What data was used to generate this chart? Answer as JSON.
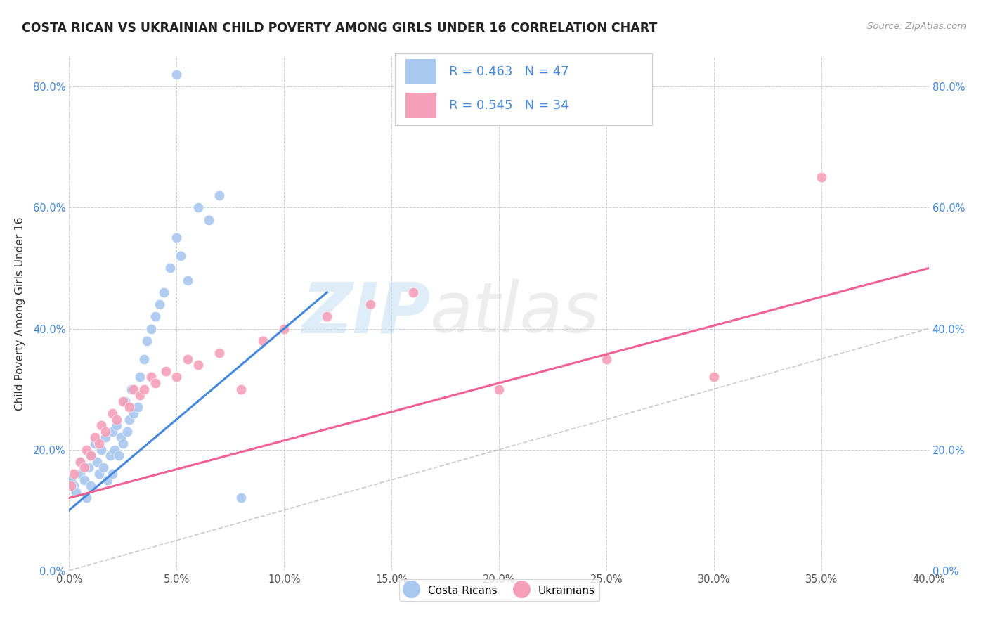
{
  "title": "COSTA RICAN VS UKRAINIAN CHILD POVERTY AMONG GIRLS UNDER 16 CORRELATION CHART",
  "source": "Source: ZipAtlas.com",
  "ylabel": "Child Poverty Among Girls Under 16",
  "xlim": [
    0.0,
    0.4
  ],
  "ylim": [
    0.0,
    0.85
  ],
  "x_ticks": [
    0.0,
    0.05,
    0.1,
    0.15,
    0.2,
    0.25,
    0.3,
    0.35,
    0.4
  ],
  "y_ticks": [
    0.0,
    0.2,
    0.4,
    0.6,
    0.8
  ],
  "background_color": "#ffffff",
  "grid_color": "#c8c8c8",
  "watermark_zip": "ZIP",
  "watermark_atlas": "atlas",
  "cr_color": "#a8c8f0",
  "ua_color": "#f5a0b8",
  "cr_line_color": "#4488dd",
  "ua_line_color": "#f06090",
  "diagonal_color": "#bbbbbb",
  "cr_R": 0.463,
  "cr_N": 47,
  "ua_R": 0.545,
  "ua_N": 34,
  "legend_text_color": "#4488dd",
  "title_color": "#222222",
  "source_color": "#999999",
  "tick_color_y": "#4488dd",
  "tick_color_x": "#555555",
  "costa_ricans_x": [
    0.001,
    0.002,
    0.003,
    0.005,
    0.005,
    0.007,
    0.008,
    0.009,
    0.01,
    0.01,
    0.012,
    0.013,
    0.014,
    0.015,
    0.016,
    0.017,
    0.018,
    0.019,
    0.02,
    0.02,
    0.021,
    0.022,
    0.023,
    0.024,
    0.025,
    0.026,
    0.027,
    0.028,
    0.029,
    0.03,
    0.032,
    0.033,
    0.035,
    0.036,
    0.038,
    0.04,
    0.042,
    0.044,
    0.047,
    0.05,
    0.052,
    0.055,
    0.06,
    0.065,
    0.07,
    0.08,
    0.05
  ],
  "costa_ricans_y": [
    0.15,
    0.14,
    0.13,
    0.18,
    0.16,
    0.15,
    0.12,
    0.17,
    0.19,
    0.14,
    0.21,
    0.18,
    0.16,
    0.2,
    0.17,
    0.22,
    0.15,
    0.19,
    0.23,
    0.16,
    0.2,
    0.24,
    0.19,
    0.22,
    0.21,
    0.28,
    0.23,
    0.25,
    0.3,
    0.26,
    0.27,
    0.32,
    0.35,
    0.38,
    0.4,
    0.42,
    0.44,
    0.46,
    0.5,
    0.55,
    0.52,
    0.48,
    0.6,
    0.58,
    0.62,
    0.12,
    0.82
  ],
  "ukrainians_x": [
    0.001,
    0.002,
    0.005,
    0.007,
    0.008,
    0.01,
    0.012,
    0.014,
    0.015,
    0.017,
    0.02,
    0.022,
    0.025,
    0.028,
    0.03,
    0.033,
    0.035,
    0.038,
    0.04,
    0.045,
    0.05,
    0.055,
    0.06,
    0.07,
    0.08,
    0.09,
    0.1,
    0.12,
    0.14,
    0.16,
    0.2,
    0.25,
    0.3,
    0.35
  ],
  "ukrainians_y": [
    0.14,
    0.16,
    0.18,
    0.17,
    0.2,
    0.19,
    0.22,
    0.21,
    0.24,
    0.23,
    0.26,
    0.25,
    0.28,
    0.27,
    0.3,
    0.29,
    0.3,
    0.32,
    0.31,
    0.33,
    0.32,
    0.35,
    0.34,
    0.36,
    0.3,
    0.38,
    0.4,
    0.42,
    0.44,
    0.46,
    0.3,
    0.35,
    0.32,
    0.65
  ]
}
